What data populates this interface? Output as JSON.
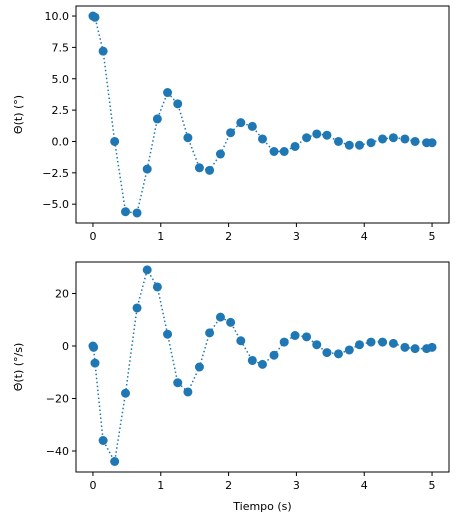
{
  "chart_data": [
    {
      "type": "line",
      "marker": "circle",
      "line_style": "dotted",
      "color": "#1f77b4",
      "x": [
        0,
        0.03,
        0.15,
        0.32,
        0.48,
        0.65,
        0.8,
        0.95,
        1.1,
        1.25,
        1.4,
        1.57,
        1.72,
        1.88,
        2.03,
        2.18,
        2.35,
        2.5,
        2.67,
        2.82,
        2.98,
        3.15,
        3.3,
        3.45,
        3.62,
        3.78,
        3.93,
        4.1,
        4.27,
        4.43,
        4.6,
        4.75,
        4.92,
        5.0
      ],
      "values": [
        10.0,
        9.9,
        7.2,
        0.0,
        -5.6,
        -5.7,
        -2.2,
        1.8,
        3.9,
        3.0,
        0.3,
        -2.1,
        -2.3,
        -1.0,
        0.7,
        1.5,
        1.2,
        0.2,
        -0.8,
        -0.8,
        -0.4,
        0.3,
        0.6,
        0.5,
        0.0,
        -0.3,
        -0.3,
        -0.1,
        0.2,
        0.3,
        0.2,
        0.0,
        -0.1,
        -0.1
      ],
      "xlim": [
        -0.25,
        5.25
      ],
      "ylim": [
        -6.5,
        10.8
      ],
      "xticks": [
        0,
        1,
        2,
        3,
        4,
        5
      ],
      "yticks": [
        -5.0,
        -2.5,
        0.0,
        2.5,
        5.0,
        7.5,
        10.0
      ],
      "xtick_labels": [
        "0",
        "1",
        "2",
        "3",
        "4",
        "5"
      ],
      "ytick_labels": [
        "−5.0",
        "−2.5",
        "0.0",
        "2.5",
        "5.0",
        "7.5",
        "10.0"
      ],
      "xlabel": "",
      "ylabel": "Θ(t) (°)",
      "grid": false
    },
    {
      "type": "line",
      "marker": "circle",
      "line_style": "dotted",
      "color": "#1f77b4",
      "x": [
        0,
        0.01,
        0.03,
        0.15,
        0.32,
        0.48,
        0.65,
        0.8,
        0.95,
        1.1,
        1.25,
        1.4,
        1.57,
        1.72,
        1.88,
        2.03,
        2.18,
        2.35,
        2.5,
        2.67,
        2.82,
        2.98,
        3.15,
        3.3,
        3.45,
        3.62,
        3.78,
        3.93,
        4.1,
        4.27,
        4.43,
        4.6,
        4.75,
        4.92,
        5.0
      ],
      "values": [
        0,
        -0.5,
        -6.5,
        -36.0,
        -44.0,
        -18.0,
        14.5,
        29.0,
        22.5,
        4.5,
        -14.0,
        -17.5,
        -8.0,
        5.0,
        11.0,
        9.0,
        2.0,
        -5.5,
        -7.0,
        -3.5,
        1.5,
        4.0,
        3.5,
        0.5,
        -2.5,
        -3.0,
        -1.5,
        0.5,
        1.5,
        1.5,
        1.0,
        -0.5,
        -1.0,
        -1.0,
        -0.5
      ],
      "xlim": [
        -0.25,
        5.25
      ],
      "ylim": [
        -48,
        32
      ],
      "xticks": [
        0,
        1,
        2,
        3,
        4,
        5
      ],
      "yticks": [
        -40,
        -20,
        0,
        20
      ],
      "xtick_labels": [
        "0",
        "1",
        "2",
        "3",
        "4",
        "5"
      ],
      "ytick_labels": [
        "−40",
        "−20",
        "0",
        "20"
      ],
      "xlabel": "Tiempo (s)",
      "ylabel": "Θ̇(t) (°/s)",
      "grid": false
    }
  ]
}
